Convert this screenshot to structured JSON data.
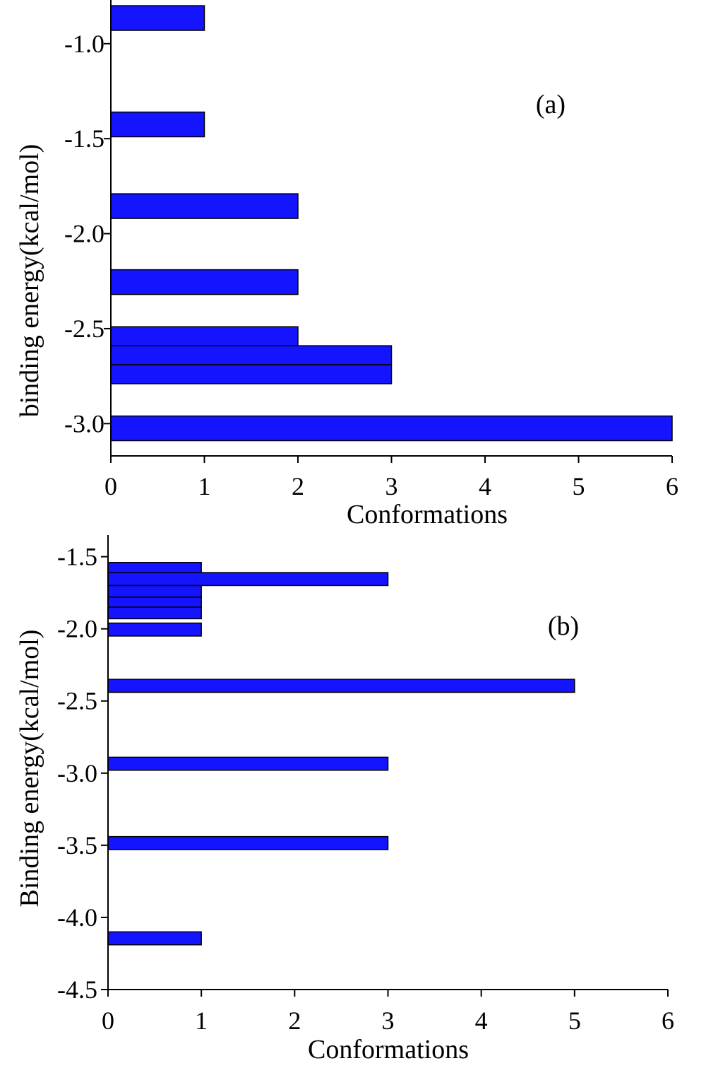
{
  "colors": {
    "bar": "#1414ff",
    "axis": "#000000"
  },
  "chart_data": [
    {
      "type": "bar",
      "orientation": "horizontal",
      "panel_label": "(a)",
      "xlabel": "Conformations",
      "ylabel": "binding energy(kcal/mol)",
      "xlim": [
        0,
        6
      ],
      "ylim": [
        -3.17,
        -0.77
      ],
      "xticks": [
        "0",
        "1",
        "2",
        "3",
        "4",
        "5",
        "6"
      ],
      "yticks": [
        {
          "label": "-1.0",
          "value": -1.0
        },
        {
          "label": "-1.5",
          "value": -1.5
        },
        {
          "label": "-2.0",
          "value": -2.0
        },
        {
          "label": "-2.5",
          "value": -2.5
        },
        {
          "label": "-3.0",
          "value": -3.0
        }
      ],
      "grid": false,
      "bars": [
        {
          "y_top": -0.8,
          "y_bottom": -0.93,
          "value": 1
        },
        {
          "y_top": -1.36,
          "y_bottom": -1.49,
          "value": 1
        },
        {
          "y_top": -1.79,
          "y_bottom": -1.92,
          "value": 2
        },
        {
          "y_top": -2.19,
          "y_bottom": -2.32,
          "value": 2
        },
        {
          "y_top": -2.49,
          "y_bottom": -2.61,
          "value": 2
        },
        {
          "y_top": -2.59,
          "y_bottom": -2.69,
          "value": 3
        },
        {
          "y_top": -2.69,
          "y_bottom": -2.79,
          "value": 3
        },
        {
          "y_top": -2.96,
          "y_bottom": -3.09,
          "value": 6
        }
      ]
    },
    {
      "type": "bar",
      "orientation": "horizontal",
      "panel_label": "(b)",
      "xlabel": "Conformations",
      "ylabel": "Binding energy(kcal/mol)",
      "xlim": [
        0,
        6
      ],
      "ylim": [
        -4.5,
        -1.35
      ],
      "xticks": [
        "0",
        "1",
        "2",
        "3",
        "4",
        "5",
        "6"
      ],
      "yticks": [
        {
          "label": "-1.5",
          "value": -1.5
        },
        {
          "label": "-2.0",
          "value": -2.0
        },
        {
          "label": "-2.5",
          "value": -2.5
        },
        {
          "label": "-3.0",
          "value": -3.0
        },
        {
          "label": "-3.5",
          "value": -3.5
        },
        {
          "label": "-4.0",
          "value": -4.0
        },
        {
          "label": "-4.5",
          "value": -4.5
        }
      ],
      "grid": false,
      "bars": [
        {
          "y_top": -1.54,
          "y_bottom": -1.63,
          "value": 1
        },
        {
          "y_top": -1.61,
          "y_bottom": -1.7,
          "value": 3
        },
        {
          "y_top": -1.7,
          "y_bottom": -1.78,
          "value": 1
        },
        {
          "y_top": -1.78,
          "y_bottom": -1.85,
          "value": 1
        },
        {
          "y_top": -1.85,
          "y_bottom": -1.93,
          "value": 1
        },
        {
          "y_top": -1.96,
          "y_bottom": -2.05,
          "value": 1
        },
        {
          "y_top": -2.35,
          "y_bottom": -2.44,
          "value": 5
        },
        {
          "y_top": -2.89,
          "y_bottom": -2.98,
          "value": 3
        },
        {
          "y_top": -3.44,
          "y_bottom": -3.53,
          "value": 3
        },
        {
          "y_top": -4.1,
          "y_bottom": -4.19,
          "value": 1
        }
      ]
    }
  ]
}
